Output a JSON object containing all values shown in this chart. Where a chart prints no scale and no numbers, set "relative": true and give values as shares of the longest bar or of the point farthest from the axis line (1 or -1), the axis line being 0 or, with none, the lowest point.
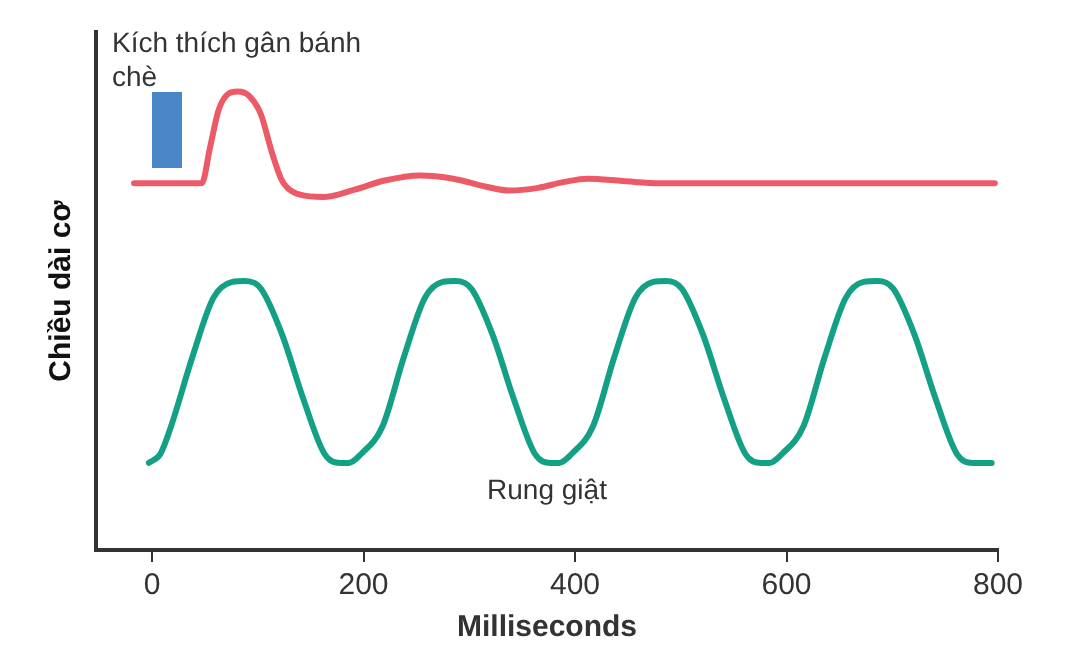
{
  "chart_data": {
    "type": "line",
    "relative": true,
    "xlabel": "Milliseconds",
    "ylabel": "Chiều dài cơ",
    "xlim": [
      -53,
      800
    ],
    "xticks": [
      0,
      200,
      400,
      600,
      800
    ],
    "grid": false,
    "legend": false,
    "marker": "none",
    "line_style": "solid",
    "annotations": [
      "Kích thích gân bánh chè",
      "Rung giật"
    ],
    "series": [
      {
        "color": "#ec5a67",
        "x": [
          -17,
          47,
          55,
          63,
          72,
          81,
          92,
          103,
          113,
          122,
          128,
          140,
          162,
          190,
          220,
          253,
          285,
          315,
          338,
          365,
          390,
          412,
          445,
          480,
          797
        ],
        "values": [
          0.8,
          0.8,
          0.88,
          0.96,
          0.995,
          1,
          0.99,
          0.95,
          0.87,
          0.81,
          0.79,
          0.775,
          0.77,
          0.785,
          0.806,
          0.817,
          0.81,
          0.793,
          0.784,
          0.79,
          0.803,
          0.81,
          0.805,
          0.8,
          0.8
        ]
      },
      {
        "color": "#14a085",
        "x": [
          -3,
          8,
          18,
          38,
          58,
          76,
          88,
          103,
          123,
          143,
          163,
          178,
          186,
          198,
          218,
          238,
          258,
          275,
          287,
          302,
          322,
          342,
          362,
          377,
          385,
          397,
          417,
          437,
          457,
          474,
          486,
          501,
          521,
          541,
          561,
          576,
          584,
          596,
          616,
          636,
          656,
          673,
          686,
          701,
          721,
          741,
          761,
          776,
          784,
          794
        ],
        "values": [
          0.19,
          0.21,
          0.27,
          0.42,
          0.55,
          0.585,
          0.587,
          0.57,
          0.47,
          0.33,
          0.21,
          0.19,
          0.19,
          0.21,
          0.27,
          0.42,
          0.55,
          0.585,
          0.587,
          0.57,
          0.47,
          0.33,
          0.21,
          0.19,
          0.19,
          0.21,
          0.27,
          0.42,
          0.55,
          0.585,
          0.587,
          0.57,
          0.47,
          0.33,
          0.21,
          0.19,
          0.19,
          0.21,
          0.27,
          0.42,
          0.55,
          0.585,
          0.587,
          0.57,
          0.47,
          0.33,
          0.21,
          0.19,
          0.19,
          0.19
        ]
      }
    ]
  }
}
